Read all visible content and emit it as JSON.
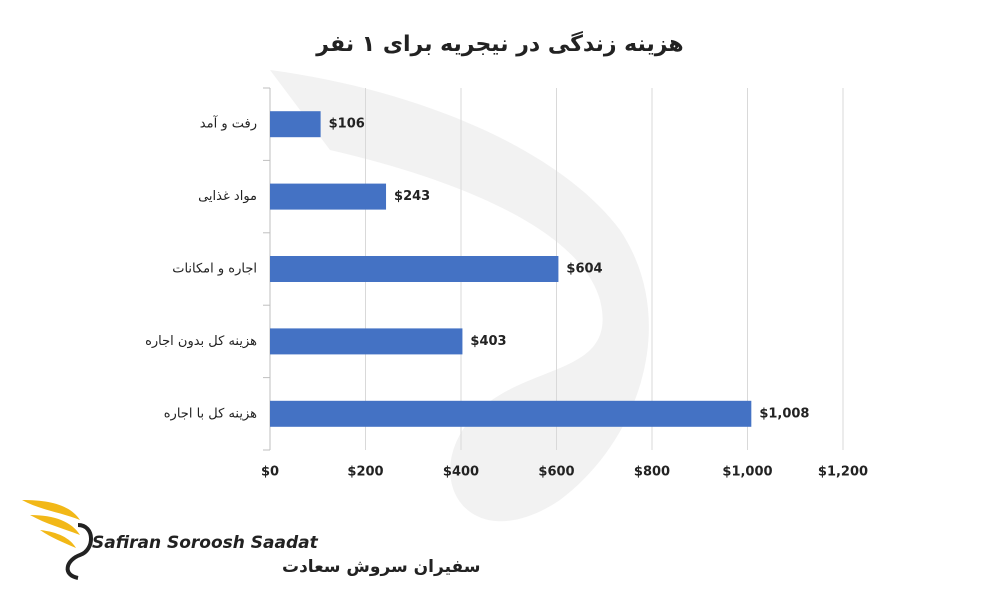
{
  "chart_data": {
    "type": "bar",
    "orientation": "horizontal",
    "title": "هزینه زندگی در نیجریه برای ۱ نفر",
    "categories": [
      "رفت و آمد",
      "مواد غذایی",
      "اجاره و امکانات",
      "هزینه کل بدون اجاره",
      "هزینه کل با اجاره"
    ],
    "values": [
      106,
      243,
      604,
      403,
      1008
    ],
    "value_labels": [
      "$106",
      "$243",
      "$604",
      "$403",
      "$1,008"
    ],
    "color": "#4472c4",
    "xlim": [
      0,
      1200
    ],
    "xticks": [
      {
        "value": 0,
        "label": "$0"
      },
      {
        "value": 200,
        "label": "$200"
      },
      {
        "value": 400,
        "label": "$400"
      },
      {
        "value": 600,
        "label": "$600"
      },
      {
        "value": 800,
        "label": "$800"
      },
      {
        "value": 1000,
        "label": "$1,000"
      },
      {
        "value": 1200,
        "label": "$1,200"
      }
    ],
    "grid": true
  },
  "logo": {
    "name_en": "Safiran Soroosh Saadat",
    "name_fa": "سفیران سروش سعادت"
  }
}
